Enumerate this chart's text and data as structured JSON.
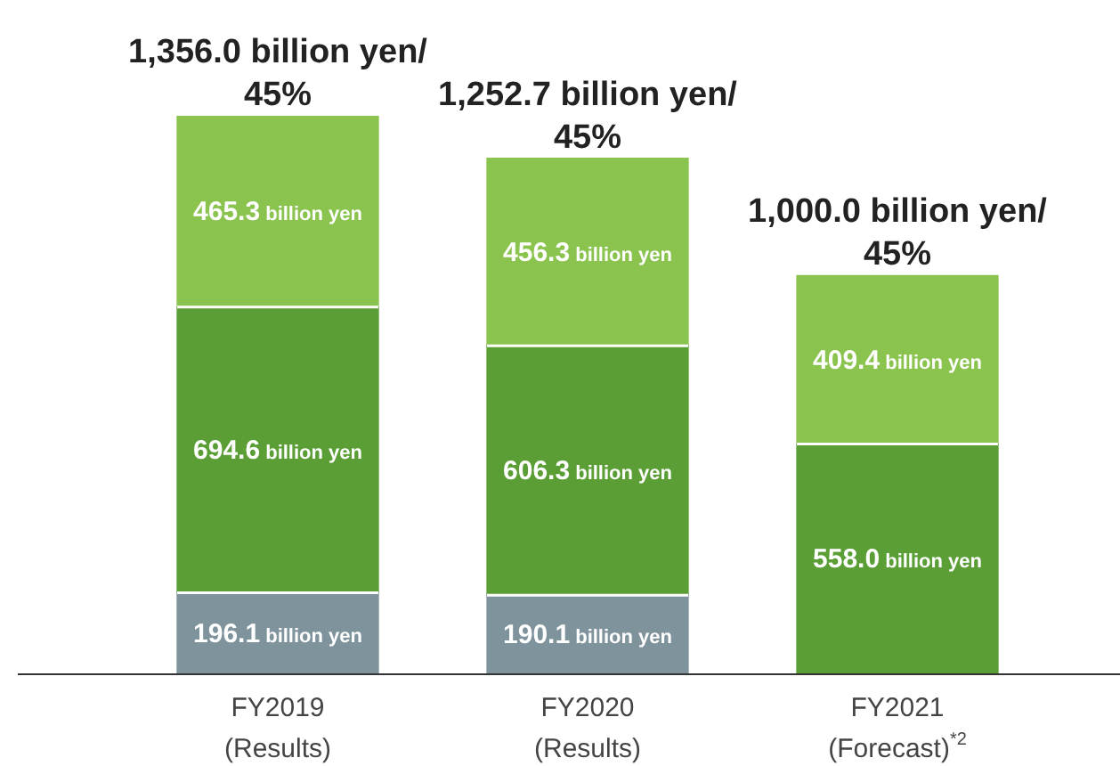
{
  "chart_data": {
    "type": "bar",
    "stacked": true,
    "categories": [
      "FY2019\n(Results)",
      "FY2020\n(Results)",
      "FY2021\n(Forecast)$^{*2}$"
    ],
    "series": [
      {
        "color": "#7f939c",
        "values": [
          196.1,
          190.1,
          null
        ],
        "value_labels": [
          "196.1 billion yen",
          "190.1 billion yen",
          null
        ]
      },
      {
        "color": "#5a9e35",
        "values": [
          694.6,
          606.3,
          558.0
        ],
        "value_labels": [
          "694.6 billion yen",
          "606.3 billion yen",
          "558.0 billion yen"
        ]
      },
      {
        "color": "#8bc34f",
        "values": [
          465.3,
          456.3,
          409.4
        ],
        "value_labels": [
          "465.3 billion yen",
          "456.3 billion yen",
          "409.4 billion yen"
        ]
      }
    ],
    "totals": [
      "1,356.0 billion yen/\n45%",
      "1,252.7 billion yen/\n45%",
      "1,000.0 billion yen/\n45%"
    ],
    "legend": false
  }
}
